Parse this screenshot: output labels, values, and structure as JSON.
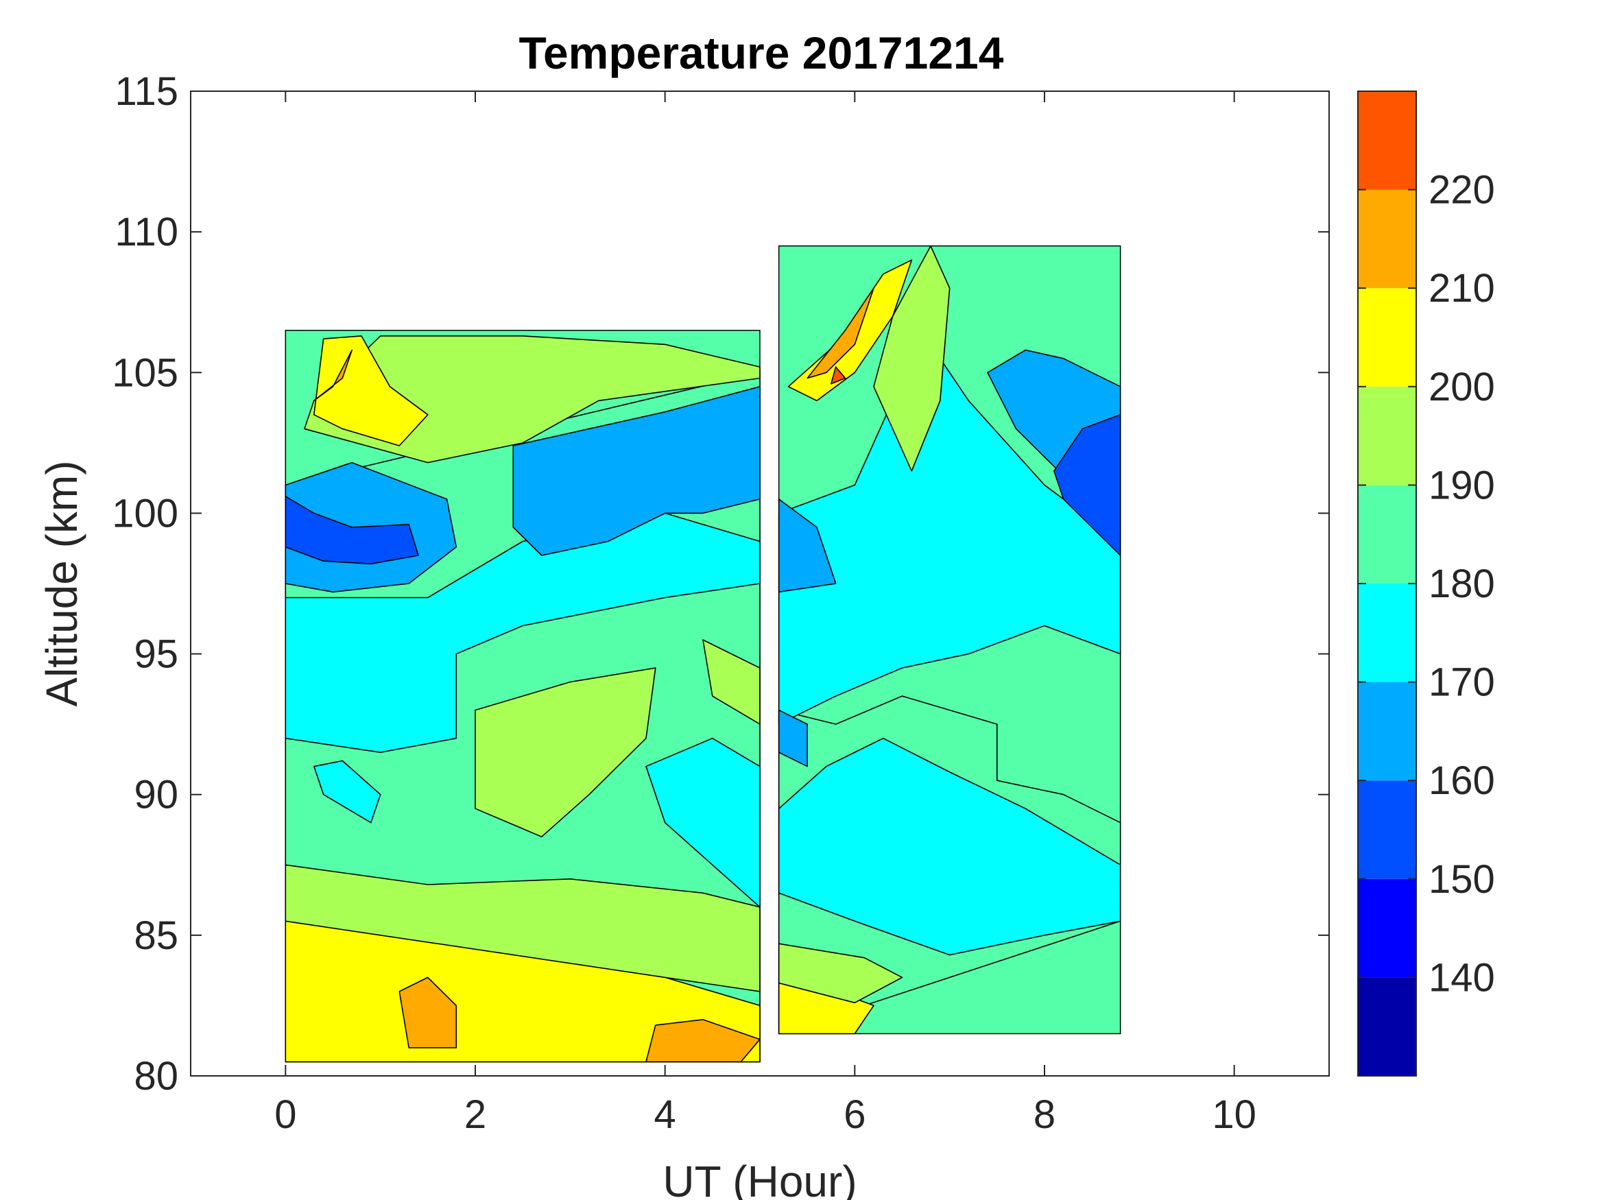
{
  "chart_data": {
    "type": "filled-contour",
    "title": "Temperature 20171214",
    "xlabel": "UT (Hour)",
    "ylabel": "Altitude (km)",
    "xlim": [
      -1,
      11
    ],
    "ylim": [
      80,
      115
    ],
    "xticks": [
      0,
      2,
      4,
      6,
      8,
      10
    ],
    "yticks": [
      80,
      85,
      90,
      95,
      100,
      105,
      110,
      115
    ],
    "colorbar": {
      "range": [
        130,
        230
      ],
      "tick_values": [
        140,
        150,
        160,
        170,
        180,
        190,
        200,
        210,
        220
      ],
      "levels": [
        {
          "from": 130,
          "to": 140,
          "color": "#0000a8"
        },
        {
          "from": 140,
          "to": 150,
          "color": "#0000ff"
        },
        {
          "from": 150,
          "to": 160,
          "color": "#0050ff"
        },
        {
          "from": 160,
          "to": 170,
          "color": "#00aaff"
        },
        {
          "from": 170,
          "to": 180,
          "color": "#00ffff"
        },
        {
          "from": 180,
          "to": 190,
          "color": "#55ffaa"
        },
        {
          "from": 190,
          "to": 200,
          "color": "#aaff55"
        },
        {
          "from": 200,
          "to": 210,
          "color": "#ffff00"
        },
        {
          "from": 210,
          "to": 220,
          "color": "#ffaa00"
        },
        {
          "from": 220,
          "to": 230,
          "color": "#ff5500"
        }
      ]
    },
    "data_segments": [
      {
        "ut_start": 0,
        "ut_end": 5,
        "alt_bottom": 80.5,
        "alt_top": 106.5
      },
      {
        "ut_start": 5.2,
        "ut_end": 8.8,
        "alt_bottom": 81.5,
        "alt_top": 109.5
      }
    ],
    "regions": [
      {
        "level": 180,
        "points": [
          [
            0,
            80.5
          ],
          [
            5,
            80.5
          ],
          [
            5,
            105
          ],
          [
            0,
            101
          ]
        ]
      },
      {
        "level": 200,
        "points": [
          [
            0,
            80.5
          ],
          [
            5,
            80.5
          ],
          [
            5,
            82.5
          ],
          [
            4,
            83.5
          ],
          [
            2.5,
            85
          ],
          [
            1,
            85.5
          ],
          [
            0,
            86
          ]
        ]
      },
      {
        "level": 210,
        "points": [
          [
            1.3,
            81
          ],
          [
            1.8,
            81
          ],
          [
            1.8,
            82.5
          ],
          [
            1.5,
            83.5
          ],
          [
            1.2,
            83
          ]
        ]
      },
      {
        "level": 210,
        "points": [
          [
            3.8,
            80.5
          ],
          [
            4.8,
            80.5
          ],
          [
            5,
            81.3
          ],
          [
            4.4,
            82
          ],
          [
            3.9,
            81.8
          ]
        ]
      },
      {
        "level": 190,
        "points": [
          [
            0,
            85.5
          ],
          [
            5,
            83
          ],
          [
            5,
            86
          ],
          [
            4.4,
            86.5
          ],
          [
            3,
            87
          ],
          [
            1.5,
            86.8
          ],
          [
            0,
            87.5
          ]
        ]
      },
      {
        "level": 170,
        "points": [
          [
            0,
            92
          ],
          [
            1,
            91.5
          ],
          [
            1.8,
            92
          ],
          [
            1.8,
            95
          ],
          [
            2.5,
            96
          ],
          [
            4,
            97
          ],
          [
            5,
            97.5
          ],
          [
            5,
            99
          ],
          [
            4,
            100
          ],
          [
            2.5,
            99
          ],
          [
            1.5,
            97
          ],
          [
            0,
            97
          ]
        ]
      },
      {
        "level": 170,
        "points": [
          [
            5,
            86
          ],
          [
            5,
            91
          ],
          [
            4.5,
            92
          ],
          [
            3.8,
            91
          ],
          [
            4,
            89
          ],
          [
            4.5,
            87.5
          ]
        ]
      },
      {
        "level": 170,
        "points": [
          [
            0.4,
            90
          ],
          [
            0.9,
            89
          ],
          [
            1.0,
            90
          ],
          [
            0.6,
            91.2
          ],
          [
            0.3,
            91
          ]
        ]
      },
      {
        "level": 190,
        "points": [
          [
            2,
            93
          ],
          [
            3,
            94
          ],
          [
            3.9,
            94.5
          ],
          [
            3.8,
            92
          ],
          [
            3.2,
            90
          ],
          [
            2.7,
            88.5
          ],
          [
            2.0,
            89.5
          ]
        ]
      },
      {
        "level": 190,
        "points": [
          [
            4.4,
            95.5
          ],
          [
            5,
            94.5
          ],
          [
            5,
            92.5
          ],
          [
            4.5,
            93.5
          ]
        ]
      },
      {
        "level": 160,
        "points": [
          [
            0,
            101
          ],
          [
            0.7,
            101.8
          ],
          [
            1.7,
            100.5
          ],
          [
            1.8,
            98.8
          ],
          [
            1.3,
            97.5
          ],
          [
            0.5,
            97.2
          ],
          [
            0,
            97.5
          ]
        ]
      },
      {
        "level": 150,
        "points": [
          [
            0,
            100.6
          ],
          [
            0.3,
            100
          ],
          [
            0.7,
            99.5
          ],
          [
            1.3,
            99.6
          ],
          [
            1.4,
            98.5
          ],
          [
            0.9,
            98.2
          ],
          [
            0.4,
            98.3
          ],
          [
            0,
            98.8
          ]
        ]
      },
      {
        "level": 160,
        "points": [
          [
            2.4,
            102.4
          ],
          [
            3.2,
            103
          ],
          [
            4,
            103.6
          ],
          [
            5,
            104.5
          ],
          [
            5,
            100.5
          ],
          [
            4.4,
            100
          ],
          [
            4,
            100
          ],
          [
            3.4,
            99
          ],
          [
            2.7,
            98.5
          ],
          [
            2.4,
            99.5
          ]
        ]
      },
      {
        "level": 190,
        "points": [
          [
            0.2,
            103
          ],
          [
            1.5,
            101.8
          ],
          [
            2.5,
            102.5
          ],
          [
            3.3,
            104
          ],
          [
            5,
            104.8
          ],
          [
            5,
            105.2
          ],
          [
            4,
            106
          ],
          [
            2.5,
            106.3
          ],
          [
            1,
            106.3
          ],
          [
            0.3,
            104
          ]
        ]
      },
      {
        "level": 200,
        "points": [
          [
            0.3,
            103.5
          ],
          [
            0.6,
            103
          ],
          [
            1.2,
            102.4
          ],
          [
            1.5,
            103.5
          ],
          [
            1.1,
            104.5
          ],
          [
            0.8,
            106.3
          ],
          [
            0.4,
            106.2
          ]
        ]
      },
      {
        "level": 210,
        "points": [
          [
            0.3,
            104
          ],
          [
            0.6,
            104.8
          ],
          [
            0.7,
            105.8
          ],
          [
            0.5,
            104.5
          ]
        ]
      },
      {
        "level": 180,
        "points": [
          [
            5.2,
            81.5
          ],
          [
            8.8,
            85.5
          ],
          [
            8.8,
            89
          ],
          [
            8.2,
            90
          ],
          [
            7.5,
            90.5
          ],
          [
            7.5,
            92.5
          ],
          [
            6.5,
            93.5
          ],
          [
            5.8,
            92.5
          ],
          [
            5.2,
            93
          ]
        ]
      },
      {
        "level": 200,
        "points": [
          [
            5.2,
            81.5
          ],
          [
            6.0,
            81.5
          ],
          [
            6.2,
            82.5
          ],
          [
            5.8,
            83
          ],
          [
            5.2,
            83.3
          ]
        ]
      },
      {
        "level": 190,
        "points": [
          [
            5.2,
            83.3
          ],
          [
            6.0,
            82.6
          ],
          [
            6.5,
            83.5
          ],
          [
            6.1,
            84.2
          ],
          [
            5.2,
            84.7
          ]
        ]
      },
      {
        "level": 170,
        "points": [
          [
            5.2,
            86.5
          ],
          [
            6.0,
            85.5
          ],
          [
            7.0,
            84.3
          ],
          [
            8.0,
            85
          ],
          [
            8.8,
            85.5
          ],
          [
            8.8,
            87.5
          ],
          [
            7.8,
            89.5
          ],
          [
            7.0,
            90.8
          ],
          [
            6.3,
            92
          ],
          [
            5.7,
            91
          ],
          [
            5.2,
            89.5
          ]
        ]
      },
      {
        "level": 170,
        "points": [
          [
            5.2,
            92.5
          ],
          [
            5.8,
            93.5
          ],
          [
            6.5,
            94.5
          ],
          [
            7.2,
            95
          ],
          [
            8.0,
            96
          ],
          [
            8.8,
            95
          ],
          [
            8.8,
            99
          ],
          [
            8.0,
            101
          ],
          [
            7.2,
            104
          ],
          [
            6.8,
            106
          ],
          [
            6.4,
            104
          ],
          [
            6.0,
            101
          ],
          [
            5.2,
            100
          ]
        ]
      },
      {
        "level": 160,
        "points": [
          [
            5.2,
            100.5
          ],
          [
            5.6,
            99.5
          ],
          [
            5.8,
            97.5
          ],
          [
            5.2,
            97.2
          ]
        ]
      },
      {
        "level": 160,
        "points": [
          [
            5.2,
            91.5
          ],
          [
            5.5,
            91
          ],
          [
            5.5,
            92.5
          ],
          [
            5.2,
            93
          ]
        ]
      },
      {
        "level": 160,
        "points": [
          [
            7.4,
            105
          ],
          [
            7.7,
            103
          ],
          [
            8.3,
            101
          ],
          [
            8.8,
            99
          ],
          [
            8.8,
            104.5
          ],
          [
            8.2,
            105.5
          ],
          [
            7.8,
            105.8
          ]
        ]
      },
      {
        "level": 150,
        "points": [
          [
            8.2,
            100.5
          ],
          [
            8.8,
            98.5
          ],
          [
            8.8,
            103.5
          ],
          [
            8.4,
            103
          ],
          [
            8.1,
            101.5
          ]
        ]
      },
      {
        "level": 190,
        "points": [
          [
            6.4,
            107
          ],
          [
            6.8,
            109.5
          ],
          [
            7.0,
            108
          ],
          [
            6.9,
            104
          ],
          [
            6.6,
            101.5
          ],
          [
            6.2,
            104.5
          ]
        ]
      },
      {
        "level": 200,
        "points": [
          [
            5.3,
            104.5
          ],
          [
            5.8,
            106
          ],
          [
            6.3,
            108.5
          ],
          [
            6.6,
            109
          ],
          [
            6.4,
            107
          ],
          [
            6.0,
            105
          ],
          [
            5.6,
            104
          ]
        ]
      },
      {
        "level": 210,
        "points": [
          [
            5.5,
            104.8
          ],
          [
            5.9,
            106.5
          ],
          [
            6.2,
            108
          ],
          [
            6.0,
            106
          ],
          [
            5.7,
            105
          ]
        ]
      },
      {
        "level": 220,
        "points": [
          [
            5.8,
            105.2
          ],
          [
            5.9,
            104.8
          ],
          [
            5.75,
            104.6
          ]
        ]
      }
    ]
  }
}
